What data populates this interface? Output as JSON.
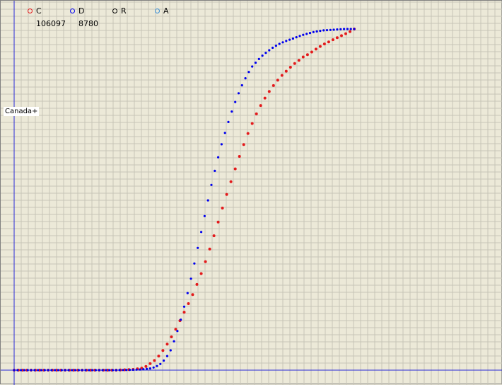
{
  "legend": [
    {
      "key": "C",
      "color": "#e31a1c",
      "value": "106097"
    },
    {
      "key": "D",
      "color": "#0000ee",
      "value": "8780"
    },
    {
      "key": "R",
      "color": "#000000",
      "value": ""
    },
    {
      "key": "A",
      "color": "#3b8fd6",
      "value": ""
    }
  ],
  "country_label": "Canada+",
  "colors": {
    "background": "#ece9d8",
    "grid": "#c7c5b7",
    "axis": "#2a2ad8",
    "confirmed": "#e31a1c",
    "deaths": "#0000ee"
  },
  "chart_data": {
    "type": "scatter",
    "title": "",
    "xlabel": "",
    "ylabel": "",
    "grid": true,
    "x_range": [
      0,
      200
    ],
    "y_range": [
      0,
      1
    ],
    "series": [
      {
        "name": "C",
        "color": "#e31a1c",
        "x": [
          0,
          30,
          60,
          70,
          75,
          78,
          80,
          83,
          86,
          89,
          92,
          95,
          98,
          101,
          104,
          107,
          110,
          113,
          116,
          119,
          122,
          125,
          128,
          131,
          134,
          137,
          140,
          143,
          146,
          149,
          152,
          155,
          158,
          161,
          164,
          167,
          170,
          173,
          176,
          179,
          182,
          185,
          188,
          191,
          194,
          197,
          200
        ],
        "y": [
          0,
          0,
          0,
          0.002,
          0.006,
          0.012,
          0.019,
          0.03,
          0.047,
          0.068,
          0.093,
          0.12,
          0.15,
          0.18,
          0.21,
          0.245,
          0.283,
          0.325,
          0.37,
          0.418,
          0.467,
          0.515,
          0.56,
          0.605,
          0.648,
          0.688,
          0.723,
          0.757,
          0.785,
          0.81,
          0.831,
          0.85,
          0.867,
          0.881,
          0.895,
          0.906,
          0.918,
          0.926,
          0.936,
          0.946,
          0.955,
          0.962,
          0.97,
          0.977,
          0.984,
          0.991,
          1.0
        ]
      },
      {
        "name": "D",
        "color": "#0000ee",
        "x": [
          0,
          30,
          60,
          70,
          75,
          80,
          83,
          86,
          89,
          92,
          95,
          98,
          101,
          104,
          107,
          110,
          113,
          116,
          119,
          122,
          125,
          128,
          131,
          134,
          137,
          140,
          143,
          146,
          149,
          152,
          155,
          158,
          161,
          164,
          167,
          170,
          173,
          176,
          179,
          182,
          185,
          188,
          191,
          194,
          197,
          200
        ],
        "y": [
          0,
          0,
          0,
          0.001,
          0.002,
          0.005,
          0.009,
          0.018,
          0.033,
          0.058,
          0.098,
          0.148,
          0.205,
          0.268,
          0.335,
          0.405,
          0.475,
          0.543,
          0.605,
          0.662,
          0.712,
          0.758,
          0.8,
          0.835,
          0.866,
          0.89,
          0.907,
          0.922,
          0.934,
          0.945,
          0.954,
          0.961,
          0.967,
          0.972,
          0.978,
          0.983,
          0.987,
          0.991,
          0.994,
          0.996,
          0.997,
          0.998,
          0.999,
          1.0,
          1.0,
          1.0
        ]
      }
    ]
  }
}
